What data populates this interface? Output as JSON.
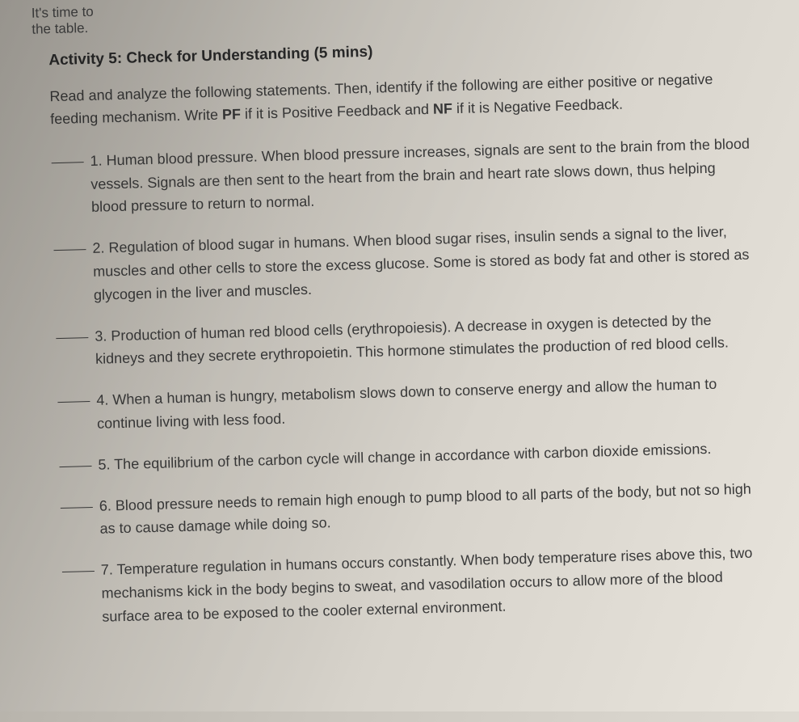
{
  "top_fragment_line1": "It's time to",
  "top_fragment_line2": "the table.",
  "activity_title": "Activity 5: Check for Understanding (5 mins)",
  "instructions_part1": "Read and analyze the following statements. Then, identify if the following are either positive or negative feeding mechanism. Write ",
  "instructions_pf": "PF",
  "instructions_part2": " if it is Positive Feedback and ",
  "instructions_nf": "NF",
  "instructions_part3": " if it is Negative Feedback.",
  "questions": [
    {
      "num": "1.",
      "text": "Human blood pressure. When blood pressure increases, signals are sent to the brain from the blood vessels. Signals are then sent to the heart from the brain and heart rate slows down, thus helping blood pressure to return to normal."
    },
    {
      "num": "2.",
      "text": "Regulation of blood sugar in humans. When blood sugar rises, insulin sends a signal to the liver, muscles and other cells to store the excess glucose. Some is stored as body fat and other is stored as glycogen in the liver and muscles."
    },
    {
      "num": "3.",
      "text": "Production of human red blood cells (erythropoiesis). A decrease in oxygen is detected by the kidneys and they secrete erythropoietin. This hormone stimulates the production of red blood cells."
    },
    {
      "num": "4.",
      "text": "When a human is hungry, metabolism slows down to conserve energy and allow the human to continue living with less food."
    },
    {
      "num": "5.",
      "text": "The equilibrium of the carbon cycle will change in accordance with carbon dioxide emissions."
    },
    {
      "num": "6.",
      "text": "Blood pressure needs to remain high enough to pump blood to all parts of the body, but not so high as to cause damage while doing so."
    },
    {
      "num": "7.",
      "text": "Temperature regulation in humans occurs constantly. When body temperature rises above this, two mechanisms kick in the body begins to sweat, and vasodilation occurs to allow more of the blood surface area to be exposed to the cooler external environment."
    }
  ]
}
